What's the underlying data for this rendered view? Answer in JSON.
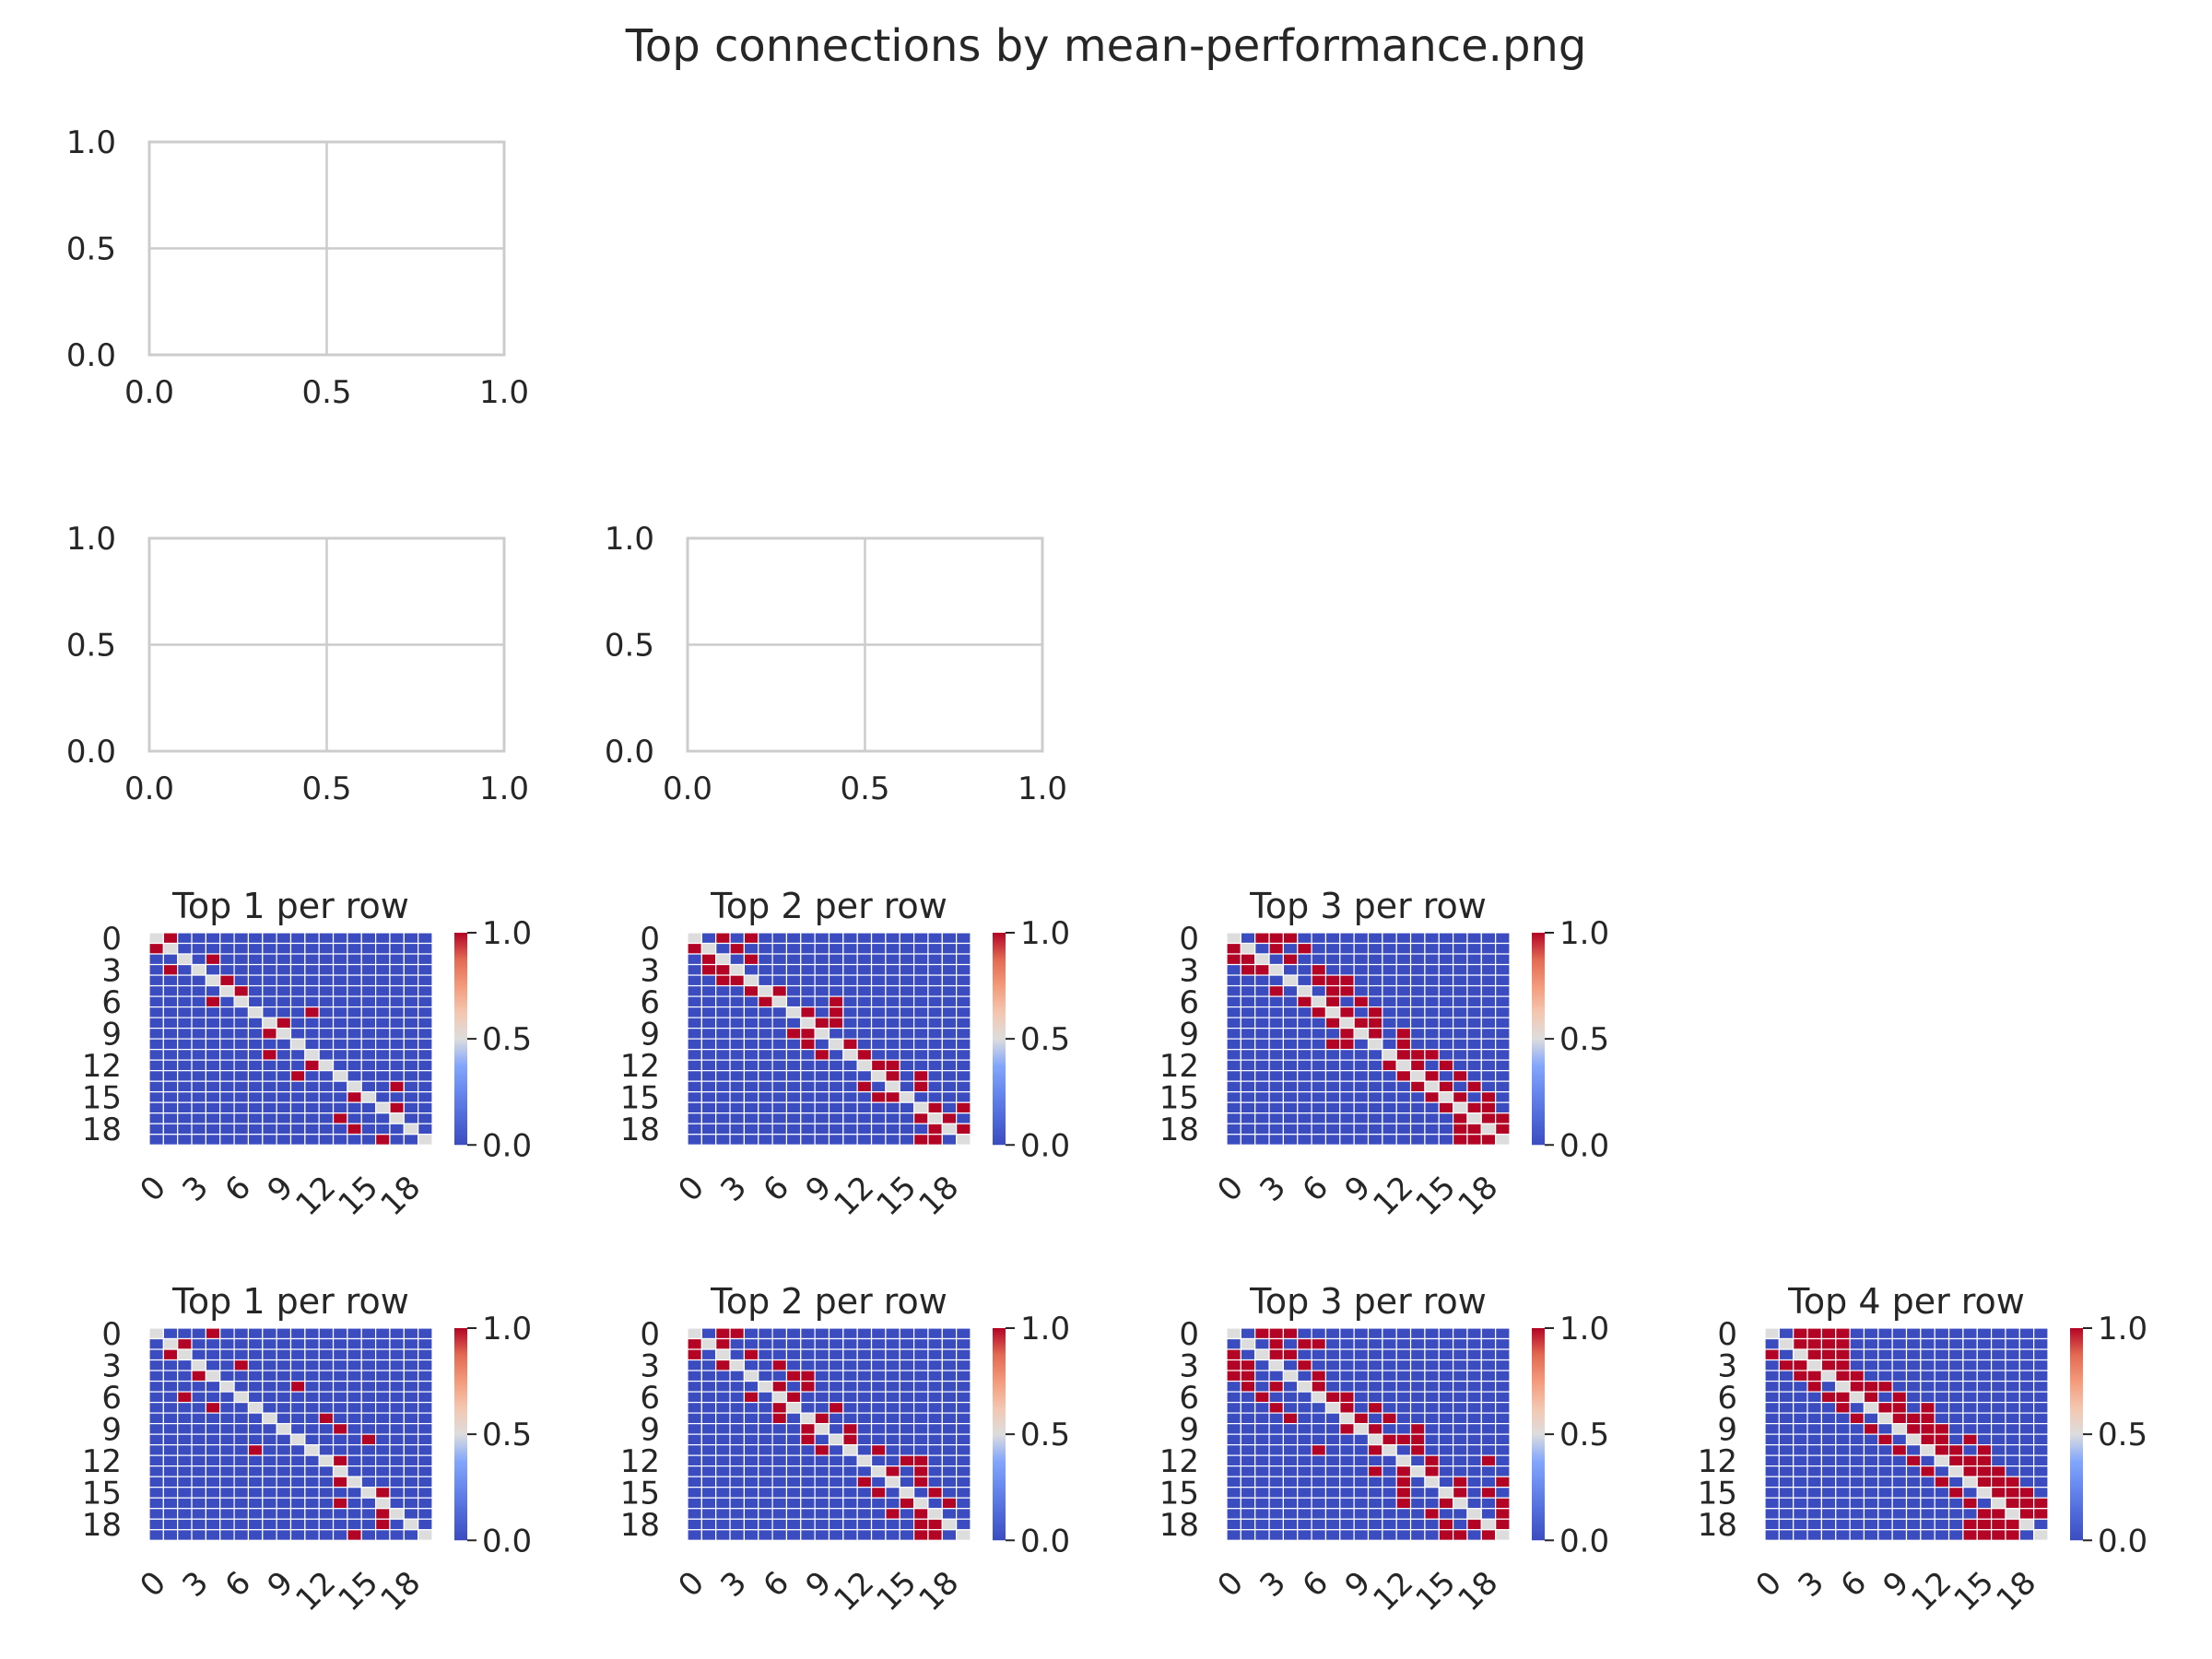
{
  "figure": {
    "title": "Top connections by mean-performance.png"
  },
  "chart_data": [
    {
      "type": "line",
      "title": "",
      "empty": true,
      "xlim": [
        0,
        1
      ],
      "ylim": [
        0,
        1
      ],
      "xticks": [
        "0.0",
        "0.5",
        "1.0"
      ],
      "yticks": [
        "0.0",
        "0.5",
        "1.0"
      ],
      "grid": true,
      "series": []
    },
    {
      "type": "line",
      "title": "",
      "empty": true,
      "xlim": [
        0,
        1
      ],
      "ylim": [
        0,
        1
      ],
      "xticks": [
        "0.0",
        "0.5",
        "1.0"
      ],
      "yticks": [
        "0.0",
        "0.5",
        "1.0"
      ],
      "grid": true,
      "series": []
    },
    {
      "type": "line",
      "title": "",
      "empty": true,
      "xlim": [
        0,
        1
      ],
      "ylim": [
        0,
        1
      ],
      "xticks": [
        "0.0",
        "0.5",
        "1.0"
      ],
      "yticks": [
        "0.0",
        "0.5",
        "1.0"
      ],
      "grid": true,
      "series": []
    },
    {
      "type": "heatmap",
      "title": "Top 1 per row",
      "k": 1,
      "size": 20,
      "diagonal_value": 0.5,
      "colormap": "coolwarm",
      "vmin": 0,
      "vmax": 1,
      "tick_labels": [
        "0",
        "3",
        "6",
        "9",
        "12",
        "15",
        "18"
      ],
      "colorbar_ticks": [
        "0.0",
        "0.5",
        "1.0"
      ],
      "selected_cells": [
        [
          0,
          1
        ],
        [
          1,
          0
        ],
        [
          2,
          4
        ],
        [
          3,
          1
        ],
        [
          4,
          5
        ],
        [
          5,
          6
        ],
        [
          6,
          4
        ],
        [
          7,
          11
        ],
        [
          8,
          9
        ],
        [
          9,
          8
        ],
        [
          10,
          10
        ],
        [
          11,
          8
        ],
        [
          12,
          11
        ],
        [
          13,
          10
        ],
        [
          14,
          17
        ],
        [
          15,
          14
        ],
        [
          16,
          17
        ],
        [
          17,
          13
        ],
        [
          18,
          14
        ],
        [
          19,
          16
        ]
      ]
    },
    {
      "type": "heatmap",
      "title": "Top 2 per row",
      "k": 2,
      "size": 20,
      "diagonal_value": 0.5,
      "colormap": "coolwarm",
      "vmin": 0,
      "vmax": 1,
      "tick_labels": [
        "0",
        "3",
        "6",
        "9",
        "12",
        "15",
        "18"
      ],
      "colorbar_ticks": [
        "0.0",
        "0.5",
        "1.0"
      ],
      "selected_cells": [
        [
          0,
          2
        ],
        [
          0,
          4
        ],
        [
          1,
          0
        ],
        [
          1,
          3
        ],
        [
          2,
          1
        ],
        [
          2,
          4
        ],
        [
          3,
          1
        ],
        [
          3,
          2
        ],
        [
          4,
          2
        ],
        [
          4,
          3
        ],
        [
          5,
          4
        ],
        [
          5,
          6
        ],
        [
          6,
          5
        ],
        [
          6,
          10
        ],
        [
          7,
          8
        ],
        [
          7,
          10
        ],
        [
          8,
          9
        ],
        [
          8,
          10
        ],
        [
          9,
          7
        ],
        [
          9,
          8
        ],
        [
          10,
          8
        ],
        [
          10,
          11
        ],
        [
          11,
          9
        ],
        [
          11,
          12
        ],
        [
          12,
          13
        ],
        [
          12,
          14
        ],
        [
          13,
          14
        ],
        [
          13,
          16
        ],
        [
          14,
          12
        ],
        [
          14,
          16
        ],
        [
          15,
          13
        ],
        [
          15,
          14
        ],
        [
          16,
          17
        ],
        [
          16,
          19
        ],
        [
          17,
          16
        ],
        [
          17,
          18
        ],
        [
          18,
          17
        ],
        [
          18,
          19
        ],
        [
          19,
          16
        ],
        [
          19,
          17
        ]
      ]
    },
    {
      "type": "heatmap",
      "title": "Top 3 per row",
      "k": 3,
      "size": 20,
      "diagonal_value": 0.5,
      "colormap": "coolwarm",
      "vmin": 0,
      "vmax": 1,
      "tick_labels": [
        "0",
        "3",
        "6",
        "9",
        "12",
        "15",
        "18"
      ],
      "colorbar_ticks": [
        "0.0",
        "0.5",
        "1.0"
      ],
      "selected_cells": [
        [
          0,
          2
        ],
        [
          0,
          3
        ],
        [
          0,
          4
        ],
        [
          1,
          0
        ],
        [
          1,
          3
        ],
        [
          1,
          5
        ],
        [
          2,
          0
        ],
        [
          2,
          1
        ],
        [
          2,
          4
        ],
        [
          3,
          1
        ],
        [
          3,
          2
        ],
        [
          3,
          6
        ],
        [
          4,
          6
        ],
        [
          4,
          7
        ],
        [
          4,
          8
        ],
        [
          5,
          3
        ],
        [
          5,
          7
        ],
        [
          5,
          8
        ],
        [
          6,
          5
        ],
        [
          6,
          7
        ],
        [
          6,
          9
        ],
        [
          7,
          6
        ],
        [
          7,
          8
        ],
        [
          7,
          10
        ],
        [
          8,
          7
        ],
        [
          8,
          9
        ],
        [
          8,
          10
        ],
        [
          9,
          8
        ],
        [
          9,
          10
        ],
        [
          9,
          12
        ],
        [
          10,
          7
        ],
        [
          10,
          8
        ],
        [
          10,
          12
        ],
        [
          11,
          12
        ],
        [
          11,
          13
        ],
        [
          11,
          14
        ],
        [
          12,
          11
        ],
        [
          12,
          13
        ],
        [
          12,
          15
        ],
        [
          13,
          12
        ],
        [
          13,
          14
        ],
        [
          13,
          16
        ],
        [
          14,
          13
        ],
        [
          14,
          15
        ],
        [
          14,
          17
        ],
        [
          15,
          14
        ],
        [
          15,
          16
        ],
        [
          15,
          18
        ],
        [
          16,
          15
        ],
        [
          16,
          17
        ],
        [
          16,
          18
        ],
        [
          17,
          16
        ],
        [
          17,
          18
        ],
        [
          17,
          19
        ],
        [
          18,
          16
        ],
        [
          18,
          17
        ],
        [
          18,
          19
        ],
        [
          19,
          16
        ],
        [
          19,
          17
        ],
        [
          19,
          18
        ]
      ]
    },
    {
      "type": "heatmap",
      "title": "Top 1 per row",
      "k": 1,
      "size": 20,
      "diagonal_value": 0.5,
      "colormap": "coolwarm",
      "vmin": 0,
      "vmax": 1,
      "tick_labels": [
        "0",
        "3",
        "6",
        "9",
        "12",
        "15",
        "18"
      ],
      "colorbar_ticks": [
        "0.0",
        "0.5",
        "1.0"
      ],
      "selected_cells": [
        [
          0,
          4
        ],
        [
          1,
          2
        ],
        [
          2,
          1
        ],
        [
          3,
          6
        ],
        [
          4,
          3
        ],
        [
          5,
          10
        ],
        [
          6,
          2
        ],
        [
          7,
          4
        ],
        [
          8,
          12
        ],
        [
          9,
          13
        ],
        [
          10,
          15
        ],
        [
          11,
          7
        ],
        [
          12,
          13
        ],
        [
          13,
          13
        ],
        [
          14,
          13
        ],
        [
          15,
          16
        ],
        [
          16,
          13
        ],
        [
          17,
          16
        ],
        [
          18,
          16
        ],
        [
          19,
          14
        ]
      ]
    },
    {
      "type": "heatmap",
      "title": "Top 2 per row",
      "k": 2,
      "size": 20,
      "diagonal_value": 0.5,
      "colormap": "coolwarm",
      "vmin": 0,
      "vmax": 1,
      "tick_labels": [
        "0",
        "3",
        "6",
        "9",
        "12",
        "15",
        "18"
      ],
      "colorbar_ticks": [
        "0.0",
        "0.5",
        "1.0"
      ],
      "selected_cells": [
        [
          0,
          2
        ],
        [
          0,
          3
        ],
        [
          1,
          0
        ],
        [
          1,
          2
        ],
        [
          2,
          0
        ],
        [
          2,
          4
        ],
        [
          3,
          2
        ],
        [
          3,
          6
        ],
        [
          4,
          7
        ],
        [
          4,
          8
        ],
        [
          5,
          6
        ],
        [
          5,
          8
        ],
        [
          6,
          4
        ],
        [
          6,
          7
        ],
        [
          7,
          6
        ],
        [
          7,
          10
        ],
        [
          8,
          6
        ],
        [
          8,
          9
        ],
        [
          9,
          8
        ],
        [
          9,
          11
        ],
        [
          10,
          8
        ],
        [
          10,
          11
        ],
        [
          11,
          9
        ],
        [
          11,
          13
        ],
        [
          12,
          15
        ],
        [
          12,
          16
        ],
        [
          13,
          14
        ],
        [
          13,
          16
        ],
        [
          14,
          12
        ],
        [
          14,
          16
        ],
        [
          15,
          13
        ],
        [
          15,
          17
        ],
        [
          16,
          15
        ],
        [
          16,
          18
        ],
        [
          17,
          14
        ],
        [
          17,
          16
        ],
        [
          18,
          16
        ],
        [
          18,
          17
        ],
        [
          19,
          16
        ],
        [
          19,
          17
        ]
      ]
    },
    {
      "type": "heatmap",
      "title": "Top 3 per row",
      "k": 3,
      "size": 20,
      "diagonal_value": 0.5,
      "colormap": "coolwarm",
      "vmin": 0,
      "vmax": 1,
      "tick_labels": [
        "0",
        "3",
        "6",
        "9",
        "12",
        "15",
        "18"
      ],
      "colorbar_ticks": [
        "0.0",
        "0.5",
        "1.0"
      ],
      "selected_cells": [
        [
          0,
          2
        ],
        [
          0,
          3
        ],
        [
          0,
          4
        ],
        [
          1,
          3
        ],
        [
          1,
          5
        ],
        [
          1,
          6
        ],
        [
          2,
          0
        ],
        [
          2,
          3
        ],
        [
          2,
          4
        ],
        [
          3,
          0
        ],
        [
          3,
          1
        ],
        [
          3,
          5
        ],
        [
          4,
          0
        ],
        [
          4,
          1
        ],
        [
          4,
          6
        ],
        [
          5,
          1
        ],
        [
          5,
          3
        ],
        [
          5,
          6
        ],
        [
          6,
          2
        ],
        [
          6,
          7
        ],
        [
          6,
          8
        ],
        [
          7,
          3
        ],
        [
          7,
          8
        ],
        [
          7,
          10
        ],
        [
          8,
          4
        ],
        [
          8,
          9
        ],
        [
          8,
          11
        ],
        [
          9,
          8
        ],
        [
          9,
          10
        ],
        [
          9,
          13
        ],
        [
          10,
          11
        ],
        [
          10,
          12
        ],
        [
          10,
          13
        ],
        [
          11,
          6
        ],
        [
          11,
          10
        ],
        [
          11,
          13
        ],
        [
          12,
          12
        ],
        [
          12,
          14
        ],
        [
          12,
          18
        ],
        [
          13,
          10
        ],
        [
          13,
          12
        ],
        [
          13,
          14
        ],
        [
          14,
          12
        ],
        [
          14,
          16
        ],
        [
          14,
          19
        ],
        [
          15,
          12
        ],
        [
          15,
          16
        ],
        [
          15,
          18
        ],
        [
          16,
          12
        ],
        [
          16,
          15
        ],
        [
          16,
          19
        ],
        [
          17,
          14
        ],
        [
          17,
          17
        ],
        [
          17,
          19
        ],
        [
          18,
          15
        ],
        [
          18,
          17
        ],
        [
          18,
          19
        ],
        [
          19,
          15
        ],
        [
          19,
          16
        ],
        [
          19,
          18
        ]
      ]
    },
    {
      "type": "heatmap",
      "title": "Top 4 per row",
      "k": 4,
      "size": 20,
      "diagonal_value": 0.5,
      "colormap": "coolwarm",
      "vmin": 0,
      "vmax": 1,
      "tick_labels": [
        "0",
        "3",
        "6",
        "9",
        "12",
        "15",
        "18"
      ],
      "colorbar_ticks": [
        "0.0",
        "0.5",
        "1.0"
      ],
      "selected_cells": [
        [
          0,
          2
        ],
        [
          0,
          3
        ],
        [
          0,
          4
        ],
        [
          0,
          5
        ],
        [
          1,
          2
        ],
        [
          1,
          3
        ],
        [
          1,
          4
        ],
        [
          1,
          5
        ],
        [
          2,
          0
        ],
        [
          2,
          3
        ],
        [
          2,
          4
        ],
        [
          2,
          5
        ],
        [
          3,
          1
        ],
        [
          3,
          2
        ],
        [
          3,
          4
        ],
        [
          3,
          5
        ],
        [
          4,
          2
        ],
        [
          4,
          3
        ],
        [
          4,
          5
        ],
        [
          4,
          6
        ],
        [
          5,
          3
        ],
        [
          5,
          6
        ],
        [
          5,
          7
        ],
        [
          5,
          8
        ],
        [
          6,
          4
        ],
        [
          6,
          5
        ],
        [
          6,
          7
        ],
        [
          6,
          9
        ],
        [
          7,
          5
        ],
        [
          7,
          8
        ],
        [
          7,
          9
        ],
        [
          7,
          11
        ],
        [
          8,
          6
        ],
        [
          8,
          9
        ],
        [
          8,
          10
        ],
        [
          8,
          11
        ],
        [
          9,
          7
        ],
        [
          9,
          10
        ],
        [
          9,
          11
        ],
        [
          9,
          12
        ],
        [
          10,
          8
        ],
        [
          10,
          11
        ],
        [
          10,
          12
        ],
        [
          10,
          14
        ],
        [
          11,
          9
        ],
        [
          11,
          12
        ],
        [
          11,
          13
        ],
        [
          11,
          15
        ],
        [
          12,
          10
        ],
        [
          12,
          13
        ],
        [
          12,
          14
        ],
        [
          12,
          15
        ],
        [
          13,
          11
        ],
        [
          13,
          14
        ],
        [
          13,
          15
        ],
        [
          13,
          16
        ],
        [
          14,
          12
        ],
        [
          14,
          15
        ],
        [
          14,
          16
        ],
        [
          14,
          17
        ],
        [
          15,
          13
        ],
        [
          15,
          16
        ],
        [
          15,
          17
        ],
        [
          15,
          18
        ],
        [
          16,
          14
        ],
        [
          16,
          17
        ],
        [
          16,
          18
        ],
        [
          16,
          19
        ],
        [
          17,
          15
        ],
        [
          17,
          16
        ],
        [
          17,
          18
        ],
        [
          17,
          19
        ],
        [
          18,
          14
        ],
        [
          18,
          15
        ],
        [
          18,
          16
        ],
        [
          18,
          17
        ],
        [
          19,
          14
        ],
        [
          19,
          15
        ],
        [
          19,
          16
        ],
        [
          19,
          17
        ]
      ]
    }
  ]
}
